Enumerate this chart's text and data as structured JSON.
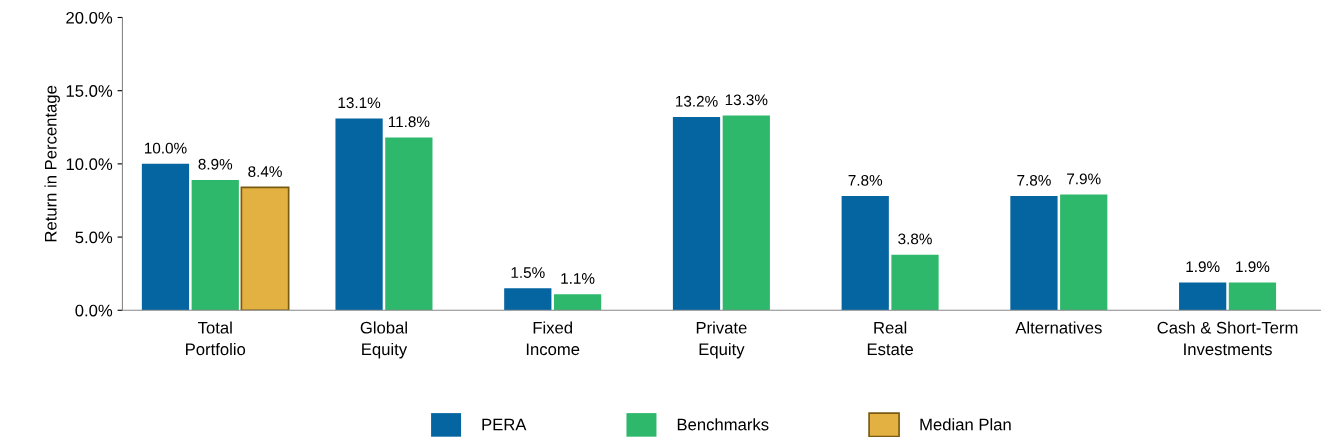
{
  "chart_data": {
    "type": "bar",
    "ylabel": "Return in Percentage",
    "categories": [
      "Total\nPortfolio",
      "Global\nEquity",
      "Fixed\nIncome",
      "Private\nEquity",
      "Real\nEstate",
      "Alternatives",
      "Cash & Short-Term\nInvestments"
    ],
    "series": [
      {
        "name": "PERA",
        "color": "#0565a0",
        "values": [
          10.0,
          13.1,
          1.5,
          13.2,
          7.8,
          7.8,
          1.9
        ],
        "value_labels": [
          "10.0%",
          "13.1%",
          "1.5%",
          "13.2%",
          "7.8%",
          "7.8%",
          "1.9%"
        ]
      },
      {
        "name": "Benchmarks",
        "color": "#2eb86b",
        "values": [
          8.9,
          11.8,
          1.1,
          13.3,
          3.8,
          7.9,
          1.9
        ],
        "value_labels": [
          "8.9%",
          "11.8%",
          "1.1%",
          "13.3%",
          "3.8%",
          "7.9%",
          "1.9%"
        ]
      },
      {
        "name": "Median Plan",
        "color": "#e3b042",
        "values": [
          8.4,
          null,
          null,
          null,
          null,
          null,
          null
        ],
        "value_labels": [
          "8.4%",
          null,
          null,
          null,
          null,
          null,
          null
        ]
      }
    ],
    "ylim": [
      0,
      20
    ],
    "yticks": [
      {
        "value": 0,
        "label": "0.0%"
      },
      {
        "value": 5,
        "label": "5.0%"
      },
      {
        "value": 10,
        "label": "10.0%"
      },
      {
        "value": 15,
        "label": "15.0%"
      },
      {
        "value": 20,
        "label": "20.0%"
      }
    ],
    "grid": false,
    "legend": "bottom"
  }
}
